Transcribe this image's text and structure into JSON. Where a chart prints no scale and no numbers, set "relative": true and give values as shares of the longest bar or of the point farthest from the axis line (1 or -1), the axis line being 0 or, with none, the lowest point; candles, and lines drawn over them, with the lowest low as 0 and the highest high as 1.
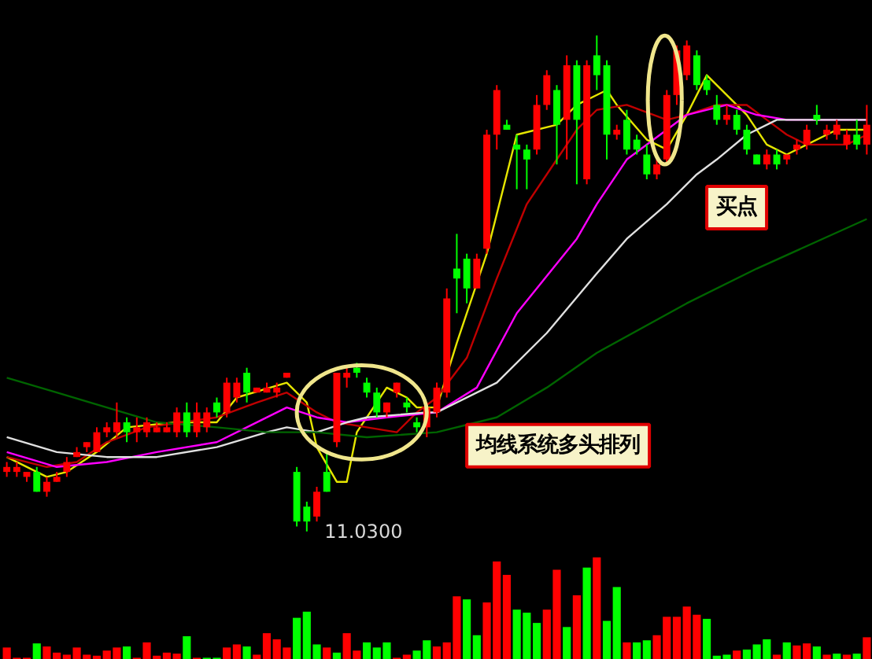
{
  "chart_data": [
    {
      "type": "candlestick",
      "relative": true,
      "grid": false,
      "tick_labels": false,
      "categories": [
        null,
        null,
        null,
        null,
        null,
        null,
        null,
        null,
        null,
        null,
        null,
        null,
        null,
        null,
        null,
        null,
        null,
        null,
        null,
        null,
        null,
        null,
        null,
        null,
        null,
        null,
        null,
        null,
        null,
        null,
        null,
        null,
        null,
        null,
        null,
        null,
        null,
        null,
        null,
        null,
        null,
        null,
        null,
        null,
        null,
        null,
        null,
        null,
        null,
        null,
        null,
        null,
        null,
        null,
        null,
        null,
        null,
        null,
        null,
        null,
        null,
        null,
        null,
        null,
        null,
        null,
        null,
        null,
        null,
        null,
        null,
        null,
        null,
        null,
        null,
        null,
        null,
        null,
        null,
        null,
        null,
        null,
        null,
        null,
        null,
        null,
        null
      ],
      "ohlc": [
        [
          0.12,
          0.14,
          0.11,
          0.13
        ],
        [
          0.12,
          0.14,
          0.11,
          0.13
        ],
        [
          0.11,
          0.12,
          0.1,
          0.12
        ],
        [
          0.12,
          0.13,
          0.08,
          0.08
        ],
        [
          0.08,
          0.11,
          0.07,
          0.1
        ],
        [
          0.1,
          0.12,
          0.1,
          0.11
        ],
        [
          0.12,
          0.15,
          0.11,
          0.14
        ],
        [
          0.15,
          0.17,
          0.15,
          0.16
        ],
        [
          0.17,
          0.18,
          0.16,
          0.18
        ],
        [
          0.16,
          0.21,
          0.16,
          0.2
        ],
        [
          0.2,
          0.22,
          0.19,
          0.21
        ],
        [
          0.2,
          0.26,
          0.19,
          0.22
        ],
        [
          0.22,
          0.23,
          0.18,
          0.2
        ],
        [
          0.2,
          0.23,
          0.18,
          0.21
        ],
        [
          0.2,
          0.23,
          0.19,
          0.22
        ],
        [
          0.2,
          0.22,
          0.2,
          0.21
        ],
        [
          0.2,
          0.22,
          0.2,
          0.21
        ],
        [
          0.2,
          0.25,
          0.19,
          0.24
        ],
        [
          0.24,
          0.26,
          0.19,
          0.2
        ],
        [
          0.2,
          0.26,
          0.19,
          0.24
        ],
        [
          0.21,
          0.25,
          0.2,
          0.24
        ],
        [
          0.26,
          0.27,
          0.23,
          0.24
        ],
        [
          0.24,
          0.31,
          0.23,
          0.3
        ],
        [
          0.27,
          0.31,
          0.26,
          0.3
        ],
        [
          0.32,
          0.33,
          0.26,
          0.28
        ],
        [
          0.28,
          0.29,
          0.28,
          0.29
        ],
        [
          0.28,
          0.3,
          0.28,
          0.29
        ],
        [
          0.28,
          0.3,
          0.27,
          0.29
        ],
        [
          0.31,
          0.32,
          0.31,
          0.32
        ],
        [
          0.12,
          0.13,
          0.01,
          0.02
        ],
        [
          0.05,
          0.06,
          0,
          0.02
        ],
        [
          0.03,
          0.09,
          0.02,
          0.08
        ],
        [
          0.12,
          0.16,
          0.08,
          0.08
        ],
        [
          0.18,
          0.32,
          0.17,
          0.32
        ],
        [
          0.31,
          0.33,
          0.29,
          0.32
        ],
        [
          0.33,
          0.34,
          0.31,
          0.32
        ],
        [
          0.3,
          0.31,
          0.27,
          0.28
        ],
        [
          0.28,
          0.29,
          0.23,
          0.24
        ],
        [
          0.24,
          0.26,
          0.23,
          0.26
        ],
        [
          0.28,
          0.3,
          0.27,
          0.3
        ],
        [
          0.26,
          0.27,
          0.24,
          0.25
        ],
        [
          0.22,
          0.23,
          0.2,
          0.21
        ],
        [
          0.21,
          0.26,
          0.19,
          0.25
        ],
        [
          0.24,
          0.3,
          0.23,
          0.29
        ],
        [
          0.28,
          0.49,
          0.27,
          0.47
        ],
        [
          0.53,
          0.6,
          0.44,
          0.51
        ],
        [
          0.55,
          0.56,
          0.46,
          0.49
        ],
        [
          0.49,
          0.56,
          0.49,
          0.55
        ],
        [
          0.57,
          0.81,
          0.56,
          0.8
        ],
        [
          0.8,
          0.9,
          0.77,
          0.89
        ],
        [
          0.82,
          0.83,
          0.81,
          0.81
        ],
        [
          0.78,
          0.8,
          0.69,
          0.77
        ],
        [
          0.77,
          0.78,
          0.69,
          0.75
        ],
        [
          0.77,
          0.88,
          0.76,
          0.86
        ],
        [
          0.86,
          0.93,
          0.85,
          0.92
        ],
        [
          0.89,
          0.9,
          0.74,
          0.82
        ],
        [
          0.83,
          0.96,
          0.75,
          0.94
        ],
        [
          0.94,
          0.95,
          0.7,
          0.83
        ],
        [
          0.71,
          0.95,
          0.7,
          0.94
        ],
        [
          0.96,
          1,
          0.89,
          0.92
        ],
        [
          0.94,
          0.95,
          0.75,
          0.8
        ],
        [
          0.8,
          0.82,
          0.79,
          0.81
        ],
        [
          0.83,
          0.85,
          0.76,
          0.77
        ],
        [
          0.79,
          0.8,
          0.76,
          0.77
        ],
        [
          0.76,
          0.78,
          0.71,
          0.72
        ],
        [
          0.72,
          0.76,
          0.71,
          0.74
        ],
        [
          0.75,
          0.89,
          0.74,
          0.88
        ],
        [
          0.88,
          0.98,
          0.86,
          0.97
        ],
        [
          0.92,
          0.99,
          0.91,
          0.98
        ],
        [
          0.96,
          0.97,
          0.89,
          0.9
        ],
        [
          0.91,
          0.92,
          0.88,
          0.89
        ],
        [
          0.86,
          0.88,
          0.82,
          0.83
        ],
        [
          0.83,
          0.86,
          0.82,
          0.84
        ],
        [
          0.84,
          0.85,
          0.8,
          0.81
        ],
        [
          0.81,
          0.82,
          0.76,
          0.77
        ],
        [
          0.76,
          0.76,
          0.74,
          0.74
        ],
        [
          0.74,
          0.77,
          0.73,
          0.76
        ],
        [
          0.76,
          0.77,
          0.73,
          0.74
        ],
        [
          0.75,
          0.76,
          0.74,
          0.76
        ],
        [
          0.77,
          0.79,
          0.76,
          0.78
        ],
        [
          0.78,
          0.82,
          0.77,
          0.81
        ],
        [
          0.84,
          0.86,
          0.82,
          0.83
        ],
        [
          0.8,
          0.82,
          0.79,
          0.81
        ],
        [
          0.8,
          0.83,
          0.79,
          0.82
        ],
        [
          0.78,
          0.81,
          0.77,
          0.8
        ],
        [
          0.8,
          0.83,
          0.77,
          0.78
        ],
        [
          0.78,
          0.86,
          0.76,
          0.82
        ]
      ],
      "colors": [
        "#ff0000",
        "#ff0000",
        "#ff0000",
        "#00ff00",
        "#ff0000",
        "#ff0000",
        "#ff0000",
        "#ff0000",
        "#ff0000",
        "#ff0000",
        "#ff0000",
        "#ff0000",
        "#00ff00",
        "#ff0000",
        "#ff0000",
        "#ff0000",
        "#ff0000",
        "#ff0000",
        "#00ff00",
        "#ff0000",
        "#ff0000",
        "#00ff00",
        "#ff0000",
        "#ff0000",
        "#00ff00",
        "#ff0000",
        "#ff0000",
        "#ff0000",
        "#ff0000",
        "#00ff00",
        "#00ff00",
        "#ff0000",
        "#00ff00",
        "#ff0000",
        "#ff0000",
        "#00ff00",
        "#00ff00",
        "#00ff00",
        "#ff0000",
        "#ff0000",
        "#00ff00",
        "#00ff00",
        "#ff0000",
        "#ff0000",
        "#ff0000",
        "#00ff00",
        "#00ff00",
        "#ff0000",
        "#ff0000",
        "#ff0000",
        "#00ff00",
        "#00ff00",
        "#00ff00",
        "#ff0000",
        "#ff0000",
        "#00ff00",
        "#ff0000",
        "#00ff00",
        "#ff0000",
        "#00ff00",
        "#00ff00",
        "#ff0000",
        "#00ff00",
        "#00ff00",
        "#00ff00",
        "#ff0000",
        "#ff0000",
        "#ff0000",
        "#ff0000",
        "#00ff00",
        "#00ff00",
        "#00ff00",
        "#ff0000",
        "#00ff00",
        "#00ff00",
        "#00ff00",
        "#ff0000",
        "#00ff00",
        "#ff0000",
        "#ff0000",
        "#ff0000",
        "#00ff00",
        "#ff0000",
        "#ff0000",
        "#ff0000",
        "#00ff00",
        "#ff0000"
      ],
      "series": [
        {
          "type": "line",
          "color": "#e6e600",
          "values": [
            0.15,
            null,
            null,
            null,
            0.11,
            null,
            0.12,
            null,
            null,
            0.16,
            null,
            null,
            0.21,
            null,
            null,
            null,
            null,
            0.22,
            null,
            null,
            null,
            0.22,
            null,
            0.27,
            null,
            null,
            null,
            null,
            0.3,
            null,
            0.26,
            0.17,
            null,
            0.1,
            0.1,
            0.2,
            null,
            null,
            0.29,
            null,
            0.27,
            0.25,
            null,
            0.25,
            null,
            0.38,
            null,
            null,
            0.56,
            null,
            null,
            0.8,
            null,
            null,
            null,
            0.82,
            null,
            0.86,
            null,
            null,
            0.89,
            0.86,
            null,
            null,
            0.79,
            null,
            0.77,
            null,
            0.84,
            null,
            0.92,
            null,
            0.88,
            null,
            0.84,
            null,
            0.78,
            null,
            0.76,
            null,
            0.78,
            null,
            null,
            0.81,
            null,
            null,
            0.81
          ]
        },
        {
          "type": "line",
          "color": "#c00000",
          "values": [
            0.15,
            null,
            null,
            null,
            0.13,
            null,
            null,
            0.14,
            null,
            null,
            0.18,
            null,
            null,
            null,
            0.21,
            null,
            null,
            null,
            null,
            null,
            null,
            0.23,
            null,
            null,
            null,
            0.26,
            null,
            null,
            0.28,
            null,
            null,
            0.24,
            null,
            0.22,
            null,
            null,
            0.21,
            null,
            null,
            0.2,
            null,
            0.24,
            null,
            0.27,
            null,
            null,
            0.35,
            null,
            null,
            0.51,
            null,
            null,
            0.66,
            null,
            null,
            null,
            null,
            0.81,
            null,
            0.85,
            null,
            null,
            0.86,
            null,
            null,
            null,
            0.83,
            null,
            0.84,
            null,
            null,
            0.86,
            null,
            null,
            0.86,
            null,
            0.83,
            null,
            0.8,
            null,
            0.78,
            null,
            null,
            null,
            0.78,
            null,
            0.8
          ]
        },
        {
          "type": "line",
          "color": "#ff00ff",
          "values": [
            0.16,
            null,
            null,
            null,
            null,
            0.13,
            null,
            null,
            null,
            null,
            0.14,
            null,
            null,
            null,
            null,
            0.16,
            null,
            null,
            null,
            null,
            null,
            0.18,
            null,
            null,
            0.21,
            null,
            null,
            null,
            0.25,
            null,
            null,
            0.23,
            null,
            null,
            0.22,
            null,
            null,
            null,
            0.23,
            null,
            null,
            null,
            null,
            0.24,
            null,
            null,
            null,
            0.29,
            null,
            null,
            null,
            0.44,
            null,
            null,
            null,
            null,
            null,
            0.59,
            null,
            0.66,
            null,
            null,
            0.75,
            null,
            null,
            null,
            0.81,
            null,
            0.84,
            null,
            null,
            null,
            0.86,
            null,
            null,
            0.84,
            null,
            null,
            0.83,
            null,
            null,
            0.83,
            null,
            null,
            null,
            null,
            0.83
          ]
        },
        {
          "type": "line",
          "color": "#e0e0e0",
          "values": [
            0.19,
            null,
            null,
            null,
            null,
            0.16,
            null,
            null,
            null,
            null,
            0.15,
            null,
            null,
            null,
            null,
            0.15,
            null,
            null,
            null,
            null,
            null,
            0.17,
            null,
            null,
            null,
            null,
            0.2,
            null,
            0.21,
            null,
            null,
            0.2,
            null,
            null,
            0.22,
            null,
            0.23,
            null,
            null,
            null,
            null,
            null,
            0.24,
            0.24,
            null,
            null,
            null,
            null,
            null,
            0.3,
            null,
            null,
            null,
            null,
            0.4,
            null,
            null,
            null,
            null,
            0.52,
            null,
            null,
            0.59,
            null,
            null,
            null,
            0.66,
            null,
            null,
            0.72,
            null,
            0.75,
            null,
            null,
            0.8,
            null,
            null,
            0.83,
            null,
            null,
            0.83,
            null,
            null,
            null,
            null,
            null,
            0.83
          ]
        },
        {
          "type": "line",
          "color": "#006400",
          "values": [
            0.31,
            null,
            null,
            null,
            null,
            0.28,
            null,
            null,
            null,
            null,
            0.25,
            null,
            null,
            null,
            null,
            0.22,
            null,
            null,
            null,
            null,
            null,
            0.21,
            null,
            null,
            null,
            null,
            0.2,
            null,
            null,
            null,
            null,
            0.2,
            null,
            null,
            null,
            null,
            0.19,
            null,
            null,
            null,
            null,
            null,
            null,
            0.2,
            null,
            null,
            null,
            null,
            null,
            0.23,
            null,
            null,
            null,
            null,
            0.29,
            null,
            null,
            null,
            null,
            0.36,
            null,
            null,
            null,
            null,
            null,
            null,
            null,
            null,
            0.46,
            null,
            null,
            null,
            null,
            null,
            null,
            0.53,
            null,
            null,
            null,
            null,
            null,
            null,
            null,
            null,
            null,
            null,
            0.63
          ]
        }
      ],
      "annotations": [
        "11.0300",
        "买点",
        "均线系统多头排列"
      ]
    },
    {
      "type": "bar",
      "relative": true,
      "tick_labels": false,
      "categories": [
        null,
        null,
        null,
        null,
        null,
        null,
        null,
        null,
        null,
        null,
        null,
        null,
        null,
        null,
        null,
        null,
        null,
        null,
        null,
        null,
        null,
        null,
        null,
        null,
        null,
        null,
        null,
        null,
        null,
        null,
        null,
        null,
        null,
        null,
        null,
        null,
        null,
        null,
        null,
        null,
        null,
        null,
        null,
        null,
        null,
        null,
        null,
        null,
        null,
        null,
        null,
        null,
        null,
        null,
        null,
        null,
        null,
        null,
        null,
        null,
        null,
        null,
        null,
        null,
        null,
        null,
        null,
        null,
        null,
        null,
        null,
        null,
        null,
        null,
        null,
        null,
        null,
        null,
        null,
        null,
        null,
        null,
        null,
        null,
        null,
        null,
        null
      ],
      "values": [
        0.12,
        0.02,
        0.02,
        0.16,
        0.13,
        0.07,
        0.05,
        0.12,
        0.05,
        0.04,
        0.09,
        0.12,
        0.13,
        0.02,
        0.17,
        0.04,
        0.07,
        0.06,
        0.23,
        0.02,
        0.02,
        0.02,
        0.12,
        0.15,
        0.13,
        0.05,
        0.26,
        0.2,
        0.12,
        0.41,
        0.47,
        0.15,
        0.12,
        0.07,
        0.26,
        0.09,
        0.17,
        0.12,
        0.17,
        0.02,
        0.05,
        0.09,
        0.19,
        0.13,
        0.17,
        0.62,
        0.59,
        0.24,
        0.56,
        0.96,
        0.83,
        0.49,
        0.46,
        0.36,
        0.49,
        0.88,
        0.32,
        0.63,
        0.9,
        1,
        0.38,
        0.71,
        0.17,
        0.17,
        0.19,
        0.24,
        0.42,
        0.42,
        0.52,
        0.44,
        0.4,
        0.04,
        0.05,
        0.09,
        0.1,
        0.15,
        0.2,
        0.05,
        0.17,
        0.14,
        0.16,
        0.13,
        0.05,
        0.06,
        0.05,
        0.06,
        0.22
      ],
      "colors": [
        "#ff0000",
        "#ff0000",
        "#ff0000",
        "#00ff00",
        "#ff0000",
        "#ff0000",
        "#ff0000",
        "#ff0000",
        "#ff0000",
        "#ff0000",
        "#ff0000",
        "#ff0000",
        "#00ff00",
        "#ff0000",
        "#ff0000",
        "#ff0000",
        "#ff0000",
        "#ff0000",
        "#00ff00",
        "#ff0000",
        "#00ff00",
        "#00ff00",
        "#ff0000",
        "#ff0000",
        "#00ff00",
        "#ff0000",
        "#ff0000",
        "#ff0000",
        "#ff0000",
        "#00ff00",
        "#00ff00",
        "#00ff00",
        "#ff0000",
        "#00ff00",
        "#ff0000",
        "#ff0000",
        "#00ff00",
        "#00ff00",
        "#00ff00",
        "#ff0000",
        "#ff0000",
        "#00ff00",
        "#00ff00",
        "#ff0000",
        "#ff0000",
        "#ff0000",
        "#00ff00",
        "#00ff00",
        "#ff0000",
        "#ff0000",
        "#ff0000",
        "#00ff00",
        "#00ff00",
        "#00ff00",
        "#ff0000",
        "#ff0000",
        "#00ff00",
        "#ff0000",
        "#00ff00",
        "#ff0000",
        "#00ff00",
        "#00ff00",
        "#ff0000",
        "#00ff00",
        "#00ff00",
        "#ff0000",
        "#ff0000",
        "#ff0000",
        "#ff0000",
        "#ff0000",
        "#00ff00",
        "#00ff00",
        "#00ff00",
        "#ff0000",
        "#00ff00",
        "#00ff00",
        "#00ff00",
        "#ff0000",
        "#00ff00",
        "#ff0000",
        "#ff0000",
        "#00ff00",
        "#ff0000",
        "#00ff00",
        "#ff0000",
        "#00ff00",
        "#ff0000"
      ]
    }
  ]
}
